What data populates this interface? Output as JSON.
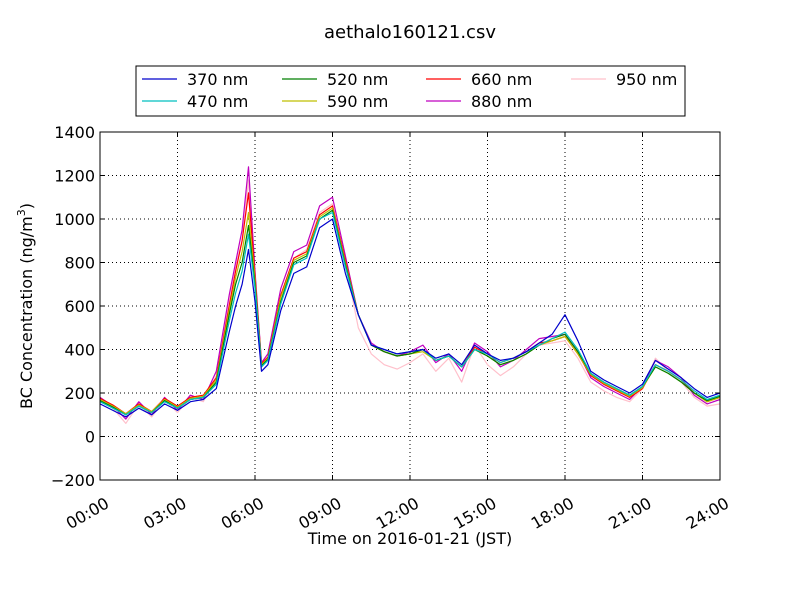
{
  "chart_data": {
    "type": "line",
    "title": "aethalo160121.csv",
    "xlabel": "Time on 2016-01-21 (JST)",
    "ylabel": "BC Concentration (ng/m",
    "ylabel_sup": "3",
    "ylabel_tail": ")",
    "xlim": [
      0,
      24
    ],
    "ylim": [
      -200,
      1400
    ],
    "xticks": [
      0,
      3,
      6,
      9,
      12,
      15,
      18,
      21,
      24
    ],
    "xtick_labels": [
      "00:00",
      "03:00",
      "06:00",
      "09:00",
      "12:00",
      "15:00",
      "18:00",
      "21:00",
      "24:00"
    ],
    "yticks": [
      -200,
      0,
      200,
      400,
      600,
      800,
      1000,
      1200,
      1400
    ],
    "ytick_labels": [
      "−200",
      "0",
      "200",
      "400",
      "600",
      "800",
      "1000",
      "1200",
      "1400"
    ],
    "grid": true,
    "legend_position": "top-center",
    "x": [
      0,
      0.5,
      1,
      1.5,
      2,
      2.5,
      3,
      3.5,
      4,
      4.5,
      5,
      5.25,
      5.5,
      5.75,
      6,
      6.25,
      6.5,
      7,
      7.5,
      8,
      8.5,
      9,
      9.5,
      10,
      10.5,
      11,
      11.5,
      12,
      12.5,
      13,
      13.5,
      14,
      14.5,
      15,
      15.5,
      16,
      16.5,
      17,
      17.5,
      18,
      18.5,
      19,
      19.5,
      20,
      20.5,
      21,
      21.5,
      22,
      22.5,
      23,
      23.5,
      24
    ],
    "series": [
      {
        "name": "370 nm",
        "color": "#0000cc",
        "values": [
          150,
          120,
          90,
          130,
          100,
          150,
          120,
          160,
          170,
          220,
          480,
          600,
          700,
          860,
          620,
          300,
          330,
          580,
          750,
          780,
          960,
          1000,
          750,
          560,
          420,
          400,
          380,
          390,
          400,
          360,
          380,
          330,
          420,
          380,
          350,
          360,
          390,
          430,
          470,
          560,
          440,
          300,
          260,
          230,
          200,
          240,
          350,
          310,
          270,
          220,
          180,
          200
        ]
      },
      {
        "name": "470 nm",
        "color": "#00bfbf",
        "values": [
          160,
          130,
          100,
          140,
          110,
          160,
          130,
          170,
          180,
          240,
          530,
          660,
          760,
          930,
          680,
          320,
          350,
          610,
          790,
          820,
          1000,
          1030,
          780,
          560,
          420,
          400,
          380,
          390,
          400,
          350,
          370,
          320,
          400,
          380,
          340,
          360,
          390,
          420,
          450,
          480,
          400,
          290,
          250,
          220,
          190,
          230,
          330,
          300,
          260,
          210,
          170,
          190
        ]
      },
      {
        "name": "520 nm",
        "color": "#007f00",
        "values": [
          165,
          135,
          100,
          140,
          110,
          165,
          130,
          170,
          180,
          250,
          560,
          700,
          800,
          970,
          700,
          325,
          355,
          620,
          800,
          830,
          1000,
          1040,
          790,
          560,
          420,
          390,
          370,
          380,
          400,
          350,
          370,
          320,
          400,
          370,
          330,
          350,
          380,
          420,
          450,
          470,
          390,
          290,
          250,
          220,
          190,
          230,
          320,
          290,
          250,
          200,
          165,
          185
        ]
      },
      {
        "name": "590 nm",
        "color": "#bfbf00",
        "values": [
          170,
          140,
          105,
          145,
          115,
          170,
          135,
          175,
          185,
          260,
          580,
          730,
          850,
          1030,
          720,
          330,
          360,
          640,
          810,
          840,
          1010,
          1050,
          800,
          560,
          420,
          390,
          370,
          380,
          390,
          350,
          370,
          320,
          400,
          370,
          330,
          350,
          380,
          420,
          440,
          460,
          380,
          285,
          245,
          215,
          185,
          225,
          320,
          290,
          250,
          200,
          160,
          180
        ]
      },
      {
        "name": "660 nm",
        "color": "#ff0000",
        "values": [
          175,
          145,
          105,
          150,
          115,
          175,
          140,
          180,
          190,
          270,
          600,
          760,
          900,
          1120,
          740,
          335,
          365,
          650,
          820,
          850,
          1020,
          1060,
          810,
          560,
          420,
          390,
          370,
          380,
          400,
          350,
          370,
          320,
          410,
          380,
          340,
          360,
          390,
          430,
          440,
          460,
          380,
          280,
          240,
          210,
          180,
          220,
          330,
          300,
          260,
          200,
          160,
          180
        ]
      },
      {
        "name": "880 nm",
        "color": "#bf00bf",
        "values": [
          180,
          140,
          80,
          160,
          100,
          180,
          120,
          190,
          170,
          300,
          650,
          800,
          950,
          1240,
          760,
          340,
          380,
          680,
          850,
          880,
          1060,
          1100,
          830,
          560,
          430,
          390,
          370,
          390,
          420,
          340,
          380,
          300,
          430,
          390,
          320,
          350,
          400,
          450,
          460,
          470,
          390,
          270,
          230,
          200,
          170,
          230,
          350,
          320,
          270,
          190,
          150,
          170
        ]
      },
      {
        "name": "950 nm",
        "color": "#ffc0cb",
        "values": [
          170,
          130,
          60,
          150,
          90,
          170,
          110,
          180,
          160,
          280,
          620,
          780,
          900,
          1180,
          700,
          320,
          360,
          650,
          820,
          860,
          1030,
          1070,
          800,
          500,
          380,
          330,
          310,
          340,
          380,
          300,
          360,
          250,
          420,
          330,
          280,
          320,
          380,
          420,
          430,
          440,
          360,
          250,
          210,
          180,
          160,
          220,
          360,
          300,
          250,
          180,
          140,
          150
        ]
      }
    ]
  }
}
